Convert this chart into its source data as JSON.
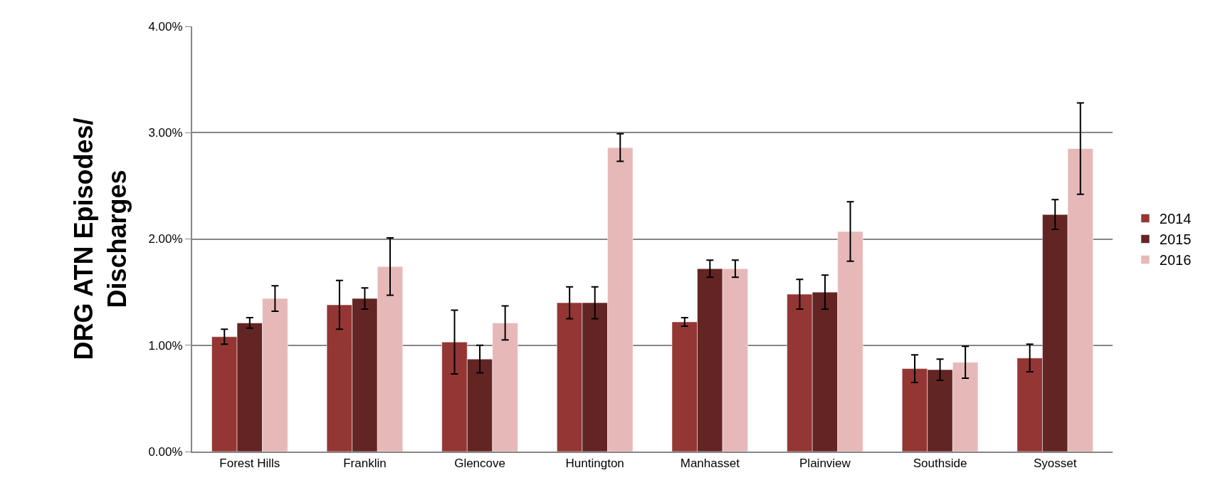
{
  "chart_data": {
    "type": "bar",
    "ylabel": "DRG ATN Episodes/\nDischarges",
    "categories": [
      "Forest Hills",
      "Franklin",
      "Glencove",
      "Huntington",
      "Manhasset",
      "Plainview",
      "Southside",
      "Syosset"
    ],
    "series": [
      {
        "name": "2014",
        "color": "#943634",
        "values": [
          1.08,
          1.38,
          1.03,
          1.4,
          1.22,
          1.48,
          0.78,
          0.88
        ],
        "errors": [
          0.07,
          0.23,
          0.3,
          0.15,
          0.04,
          0.14,
          0.13,
          0.13
        ]
      },
      {
        "name": "2015",
        "color": "#632523",
        "values": [
          1.21,
          1.44,
          0.87,
          1.4,
          1.72,
          1.5,
          0.77,
          2.23
        ],
        "errors": [
          0.05,
          0.1,
          0.13,
          0.15,
          0.08,
          0.16,
          0.1,
          0.14
        ]
      },
      {
        "name": "2016",
        "color": "#e6b9b8",
        "values": [
          1.44,
          1.74,
          1.21,
          2.86,
          1.72,
          2.07,
          0.84,
          2.85
        ],
        "errors": [
          0.12,
          0.27,
          0.16,
          0.13,
          0.08,
          0.28,
          0.15,
          0.43
        ]
      }
    ],
    "ylim": [
      0,
      4
    ],
    "yticks": [
      {
        "value": 0,
        "label": "0.00%"
      },
      {
        "value": 1,
        "label": "1.00%"
      },
      {
        "value": 2,
        "label": "2.00%"
      },
      {
        "value": 3,
        "label": "3.00%"
      },
      {
        "value": 4,
        "label": "4.00%"
      }
    ],
    "grid": "y",
    "legend": "right"
  }
}
